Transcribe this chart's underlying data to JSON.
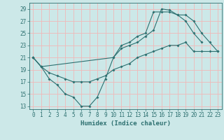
{
  "title": "",
  "xlabel": "Humidex (Indice chaleur)",
  "ylabel": "",
  "background_color": "#cce8e8",
  "grid_color": "#f0b8b8",
  "line_color": "#2d7070",
  "xlim": [
    -0.5,
    23.5
  ],
  "ylim": [
    12.5,
    30
  ],
  "xticks": [
    0,
    1,
    2,
    3,
    4,
    5,
    6,
    7,
    8,
    9,
    10,
    11,
    12,
    13,
    14,
    15,
    16,
    17,
    18,
    19,
    20,
    21,
    22,
    23
  ],
  "yticks": [
    13,
    15,
    17,
    19,
    21,
    23,
    25,
    27,
    29
  ],
  "line1_x": [
    0,
    1,
    2,
    3,
    4,
    5,
    6,
    7,
    8,
    9,
    10,
    11,
    12,
    13,
    14,
    15,
    16,
    17,
    18,
    19,
    20,
    21
  ],
  "line1_y": [
    21,
    19.5,
    17.5,
    16.5,
    15,
    14.5,
    13,
    13,
    14.5,
    17.5,
    21,
    23,
    23.5,
    24.5,
    25,
    28.5,
    28.5,
    28.5,
    28,
    27,
    25,
    23.5
  ],
  "line2_x": [
    0,
    1,
    2,
    3,
    4,
    5,
    6,
    7,
    8,
    9,
    10,
    11,
    12,
    13,
    14,
    15,
    16,
    17,
    18,
    19,
    20,
    21,
    22,
    23
  ],
  "line2_y": [
    21,
    19.5,
    18.5,
    18,
    17.5,
    17,
    17,
    17,
    17.5,
    18,
    19,
    19.5,
    20,
    21,
    21.5,
    22,
    22.5,
    23,
    23,
    23.5,
    22,
    22,
    22,
    22
  ],
  "line3_x": [
    0,
    1,
    10,
    11,
    12,
    13,
    14,
    15,
    16,
    17,
    18,
    19,
    20,
    21,
    22,
    23
  ],
  "line3_y": [
    21,
    19.5,
    21,
    22.5,
    23,
    23.5,
    24.5,
    25.5,
    29,
    28.8,
    28,
    28,
    27,
    25,
    23.5,
    22
  ]
}
